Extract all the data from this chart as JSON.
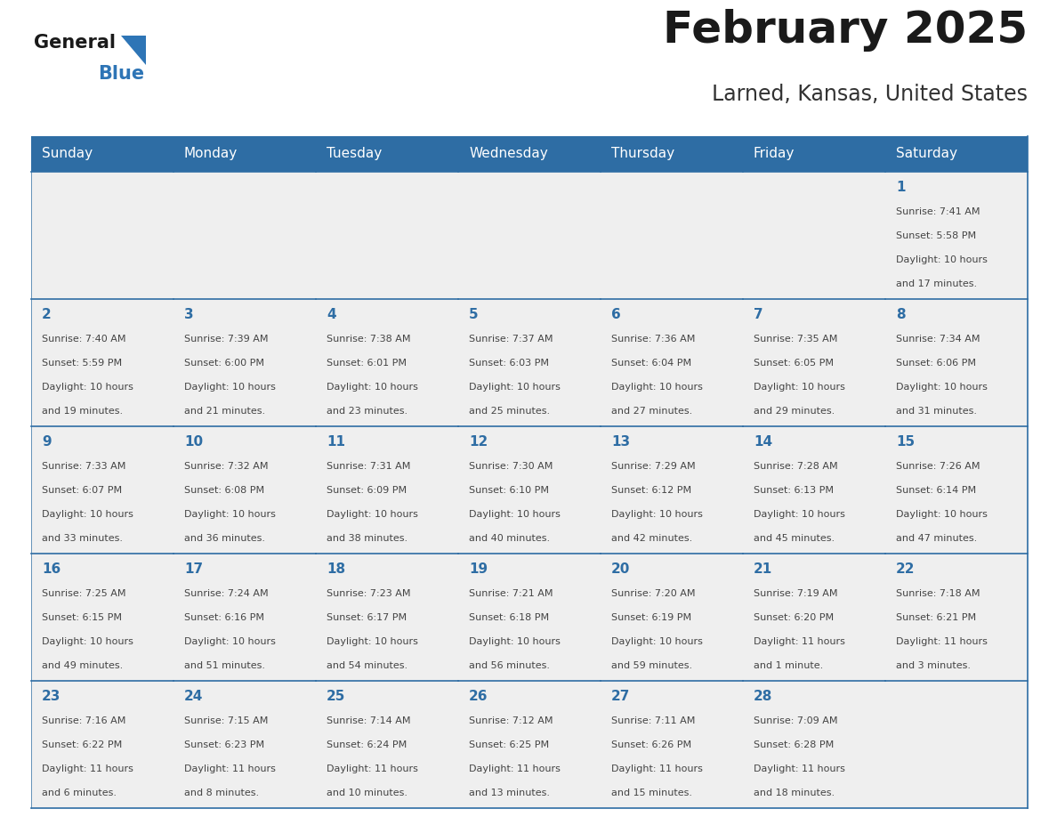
{
  "title": "February 2025",
  "subtitle": "Larned, Kansas, United States",
  "days_of_week": [
    "Sunday",
    "Monday",
    "Tuesday",
    "Wednesday",
    "Thursday",
    "Friday",
    "Saturday"
  ],
  "header_bg": "#2E6DA4",
  "header_text": "#FFFFFF",
  "cell_bg": "#EFEFEF",
  "day_number_color": "#2E6DA4",
  "text_color": "#444444",
  "border_color": "#2E6DA4",
  "calendar_data": [
    [
      null,
      null,
      null,
      null,
      null,
      null,
      {
        "day": "1",
        "sunrise": "7:41 AM",
        "sunset": "5:58 PM",
        "daylight": "10 hours\nand 17 minutes."
      }
    ],
    [
      {
        "day": "2",
        "sunrise": "7:40 AM",
        "sunset": "5:59 PM",
        "daylight": "10 hours\nand 19 minutes."
      },
      {
        "day": "3",
        "sunrise": "7:39 AM",
        "sunset": "6:00 PM",
        "daylight": "10 hours\nand 21 minutes."
      },
      {
        "day": "4",
        "sunrise": "7:38 AM",
        "sunset": "6:01 PM",
        "daylight": "10 hours\nand 23 minutes."
      },
      {
        "day": "5",
        "sunrise": "7:37 AM",
        "sunset": "6:03 PM",
        "daylight": "10 hours\nand 25 minutes."
      },
      {
        "day": "6",
        "sunrise": "7:36 AM",
        "sunset": "6:04 PM",
        "daylight": "10 hours\nand 27 minutes."
      },
      {
        "day": "7",
        "sunrise": "7:35 AM",
        "sunset": "6:05 PM",
        "daylight": "10 hours\nand 29 minutes."
      },
      {
        "day": "8",
        "sunrise": "7:34 AM",
        "sunset": "6:06 PM",
        "daylight": "10 hours\nand 31 minutes."
      }
    ],
    [
      {
        "day": "9",
        "sunrise": "7:33 AM",
        "sunset": "6:07 PM",
        "daylight": "10 hours\nand 33 minutes."
      },
      {
        "day": "10",
        "sunrise": "7:32 AM",
        "sunset": "6:08 PM",
        "daylight": "10 hours\nand 36 minutes."
      },
      {
        "day": "11",
        "sunrise": "7:31 AM",
        "sunset": "6:09 PM",
        "daylight": "10 hours\nand 38 minutes."
      },
      {
        "day": "12",
        "sunrise": "7:30 AM",
        "sunset": "6:10 PM",
        "daylight": "10 hours\nand 40 minutes."
      },
      {
        "day": "13",
        "sunrise": "7:29 AM",
        "sunset": "6:12 PM",
        "daylight": "10 hours\nand 42 minutes."
      },
      {
        "day": "14",
        "sunrise": "7:28 AM",
        "sunset": "6:13 PM",
        "daylight": "10 hours\nand 45 minutes."
      },
      {
        "day": "15",
        "sunrise": "7:26 AM",
        "sunset": "6:14 PM",
        "daylight": "10 hours\nand 47 minutes."
      }
    ],
    [
      {
        "day": "16",
        "sunrise": "7:25 AM",
        "sunset": "6:15 PM",
        "daylight": "10 hours\nand 49 minutes."
      },
      {
        "day": "17",
        "sunrise": "7:24 AM",
        "sunset": "6:16 PM",
        "daylight": "10 hours\nand 51 minutes."
      },
      {
        "day": "18",
        "sunrise": "7:23 AM",
        "sunset": "6:17 PM",
        "daylight": "10 hours\nand 54 minutes."
      },
      {
        "day": "19",
        "sunrise": "7:21 AM",
        "sunset": "6:18 PM",
        "daylight": "10 hours\nand 56 minutes."
      },
      {
        "day": "20",
        "sunrise": "7:20 AM",
        "sunset": "6:19 PM",
        "daylight": "10 hours\nand 59 minutes."
      },
      {
        "day": "21",
        "sunrise": "7:19 AM",
        "sunset": "6:20 PM",
        "daylight": "11 hours\nand 1 minute."
      },
      {
        "day": "22",
        "sunrise": "7:18 AM",
        "sunset": "6:21 PM",
        "daylight": "11 hours\nand 3 minutes."
      }
    ],
    [
      {
        "day": "23",
        "sunrise": "7:16 AM",
        "sunset": "6:22 PM",
        "daylight": "11 hours\nand 6 minutes."
      },
      {
        "day": "24",
        "sunrise": "7:15 AM",
        "sunset": "6:23 PM",
        "daylight": "11 hours\nand 8 minutes."
      },
      {
        "day": "25",
        "sunrise": "7:14 AM",
        "sunset": "6:24 PM",
        "daylight": "11 hours\nand 10 minutes."
      },
      {
        "day": "26",
        "sunrise": "7:12 AM",
        "sunset": "6:25 PM",
        "daylight": "11 hours\nand 13 minutes."
      },
      {
        "day": "27",
        "sunrise": "7:11 AM",
        "sunset": "6:26 PM",
        "daylight": "11 hours\nand 15 minutes."
      },
      {
        "day": "28",
        "sunrise": "7:09 AM",
        "sunset": "6:28 PM",
        "daylight": "11 hours\nand 18 minutes."
      },
      null
    ]
  ],
  "logo_general_color": "#1a1a1a",
  "logo_blue_color": "#2E75B6",
  "logo_triangle_color": "#2E75B6"
}
